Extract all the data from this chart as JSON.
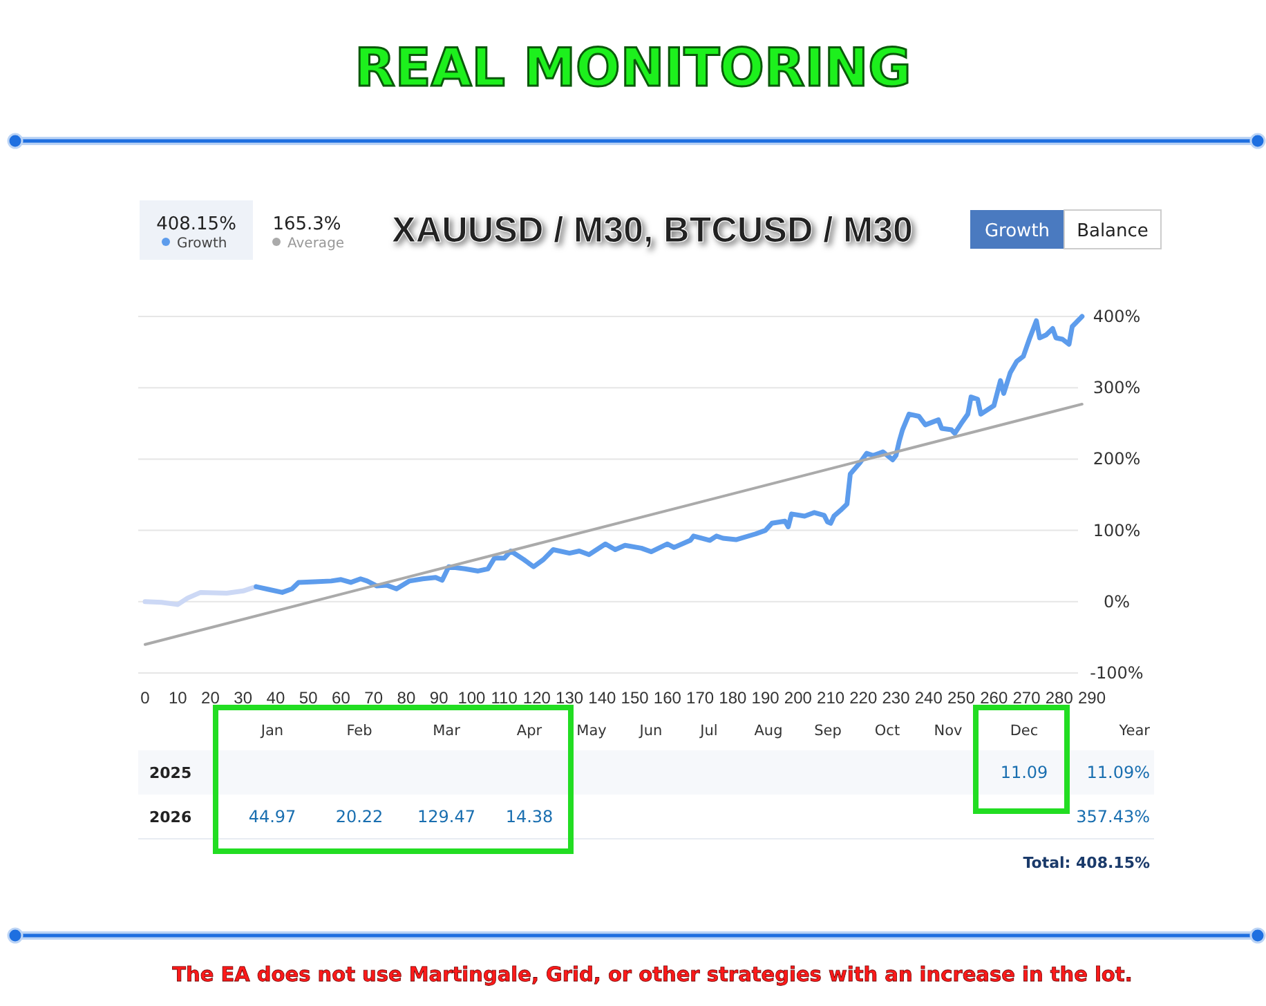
{
  "chart_data": [
    {
      "type": "line",
      "title": "REAL MONITORING",
      "subtitle": "XAUUSD / M30, BTCUSD / M30",
      "annotations": [
        "408.15%",
        "165.3%",
        "Growth",
        "Balance",
        "The EA does not use Martingale, Grid, or other strategies with an increase in the lot."
      ],
      "series": [
        {
          "color": "#ccd8f5",
          "x": [
            0,
            5,
            10,
            13,
            17,
            25,
            30,
            34
          ],
          "values": [
            0,
            -1,
            -4,
            5,
            13,
            12,
            15,
            21
          ]
        },
        {
          "name": "Growth",
          "color": "#5d9cec",
          "x": [
            34,
            38,
            42,
            45,
            47,
            52,
            57,
            60,
            63,
            66,
            68,
            71,
            74,
            77,
            81,
            85,
            89,
            91,
            93,
            98,
            102,
            105,
            107,
            110,
            112,
            116,
            119,
            122,
            125,
            130,
            133,
            136,
            141,
            144,
            147,
            152,
            155,
            160,
            162,
            167,
            168,
            173,
            175,
            177,
            181,
            187,
            190,
            192,
            196,
            197,
            198,
            202,
            205,
            208,
            209,
            210,
            211,
            213,
            215,
            216,
            219,
            221,
            223,
            226,
            229,
            230,
            231,
            232,
            234,
            237,
            239,
            243,
            244,
            247,
            248,
            250,
            252,
            253,
            255,
            256,
            260,
            262,
            263,
            265,
            267,
            269,
            271,
            273,
            274,
            276,
            278,
            279,
            281,
            283,
            284,
            287
          ],
          "values": [
            21,
            17,
            13,
            18,
            27,
            28,
            29,
            31,
            27,
            32,
            29,
            22,
            23,
            18,
            29,
            32,
            34,
            30,
            49,
            46,
            43,
            46,
            61,
            61,
            71,
            59,
            49,
            59,
            73,
            68,
            71,
            66,
            81,
            73,
            79,
            75,
            70,
            81,
            76,
            86,
            92,
            86,
            92,
            89,
            87,
            95,
            100,
            110,
            113,
            105,
            123,
            120,
            125,
            121,
            112,
            110,
            120,
            128,
            137,
            179,
            195,
            208,
            205,
            210,
            199,
            205,
            225,
            241,
            263,
            260,
            248,
            255,
            243,
            241,
            236,
            250,
            263,
            287,
            284,
            263,
            275,
            310,
            292,
            321,
            337,
            344,
            370,
            394,
            370,
            374,
            383,
            370,
            368,
            361,
            386,
            400
          ]
        },
        {
          "name": "Average",
          "color": "#aaaaaa",
          "x": [
            0,
            287
          ],
          "values": [
            -60,
            277
          ]
        }
      ],
      "xlim": [
        0,
        290
      ],
      "xticks": [
        0,
        10,
        20,
        30,
        40,
        50,
        60,
        70,
        80,
        90,
        100,
        110,
        120,
        130,
        140,
        150,
        160,
        170,
        180,
        190,
        200,
        210,
        220,
        230,
        240,
        250,
        260,
        270,
        280,
        290
      ],
      "ylim": [
        -100,
        400
      ],
      "yticks": [
        {
          "value": -100,
          "label": "-100%"
        },
        {
          "value": 0,
          "label": "0%"
        },
        {
          "value": 100,
          "label": "100%"
        },
        {
          "value": 200,
          "label": "200%"
        },
        {
          "value": 300,
          "label": "300%"
        },
        {
          "value": 400,
          "label": "400%"
        }
      ],
      "grid": "y",
      "legend": "top left",
      "marker": "none",
      "line_style": "solid"
    },
    {
      "type": "heatmap",
      "categories": [
        "Jan",
        "Feb",
        "Mar",
        "Apr",
        "May",
        "Jun",
        "Jul",
        "Aug",
        "Sep",
        "Oct",
        "Nov",
        "Dec"
      ],
      "y_categories": [
        "2025",
        "2026"
      ],
      "data_labels": true,
      "cells": [
        [
          null,
          null,
          null,
          null,
          null,
          null,
          null,
          null,
          null,
          null,
          null,
          11.09
        ],
        [
          44.97,
          20.22,
          129.47,
          14.38,
          null,
          null,
          null,
          null,
          null,
          null,
          null,
          null
        ]
      ],
      "annotations": [
        "Year",
        "11.09%",
        "357.43%",
        "Total: 408.15%"
      ]
    }
  ]
}
